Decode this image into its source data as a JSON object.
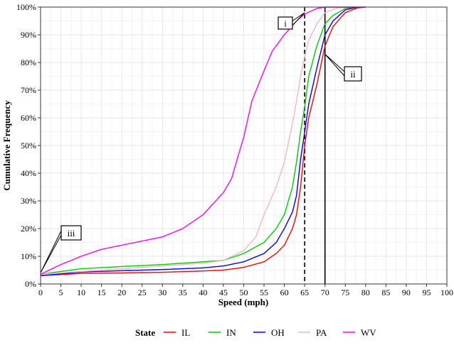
{
  "chart_data": {
    "type": "line",
    "xlabel": "Speed (mph)",
    "ylabel": "Cumulative Frequency",
    "xlim": [
      0,
      100
    ],
    "ylim": [
      0,
      100
    ],
    "x_ticks": [
      0,
      5,
      10,
      15,
      20,
      25,
      30,
      35,
      40,
      45,
      50,
      55,
      60,
      65,
      70,
      75,
      80,
      85,
      90,
      95,
      100
    ],
    "y_ticks": [
      0,
      10,
      20,
      30,
      40,
      50,
      60,
      70,
      80,
      90,
      100
    ],
    "y_tick_labels": [
      "0%",
      "10%",
      "20%",
      "30%",
      "40%",
      "50%",
      "60%",
      "70%",
      "80%",
      "90%",
      "100%"
    ],
    "grid": true,
    "legend": {
      "title": "State",
      "placement": "bottom"
    },
    "reference_lines": [
      {
        "x": 65,
        "style": "dashed"
      },
      {
        "x": 70,
        "style": "solid"
      }
    ],
    "annotations": [
      {
        "label": "i",
        "points_to": [
          65,
          98
        ]
      },
      {
        "label": "ii",
        "points_to": [
          70,
          83
        ]
      },
      {
        "label": "iii",
        "points_to": [
          0,
          4
        ]
      }
    ],
    "series": [
      {
        "name": "IL",
        "color": "#ff0000",
        "points": [
          [
            0,
            3
          ],
          [
            10,
            3.8
          ],
          [
            20,
            4
          ],
          [
            30,
            4.2
          ],
          [
            40,
            4.7
          ],
          [
            45,
            5
          ],
          [
            50,
            6
          ],
          [
            55,
            8
          ],
          [
            58,
            11
          ],
          [
            60,
            14
          ],
          [
            62,
            20
          ],
          [
            63,
            25
          ],
          [
            64,
            35
          ],
          [
            65,
            50
          ],
          [
            66,
            60
          ],
          [
            68,
            72
          ],
          [
            70,
            86
          ],
          [
            72,
            93
          ],
          [
            75,
            98
          ],
          [
            78,
            99.7
          ],
          [
            80,
            100
          ]
        ]
      },
      {
        "name": "IN",
        "color": "#00cc00",
        "points": [
          [
            0,
            3.5
          ],
          [
            10,
            5.5
          ],
          [
            20,
            6.3
          ],
          [
            30,
            7
          ],
          [
            40,
            8
          ],
          [
            45,
            8.5
          ],
          [
            50,
            11
          ],
          [
            55,
            15
          ],
          [
            58,
            20
          ],
          [
            60,
            25
          ],
          [
            62,
            35
          ],
          [
            63,
            44
          ],
          [
            64,
            55
          ],
          [
            65,
            64
          ],
          [
            66,
            75
          ],
          [
            68,
            86
          ],
          [
            70,
            94
          ],
          [
            72,
            97
          ],
          [
            75,
            99.5
          ],
          [
            78,
            100
          ]
        ]
      },
      {
        "name": "OH",
        "color": "#0000ff",
        "points": [
          [
            0,
            3
          ],
          [
            10,
            4.3
          ],
          [
            20,
            4.8
          ],
          [
            30,
            5.2
          ],
          [
            40,
            5.8
          ],
          [
            45,
            6.5
          ],
          [
            50,
            8
          ],
          [
            55,
            11
          ],
          [
            58,
            15
          ],
          [
            60,
            20
          ],
          [
            62,
            26
          ],
          [
            63,
            32
          ],
          [
            64,
            45
          ],
          [
            65,
            55
          ],
          [
            66,
            65
          ],
          [
            68,
            78
          ],
          [
            70,
            90
          ],
          [
            72,
            95
          ],
          [
            75,
            99
          ],
          [
            78,
            100
          ]
        ]
      },
      {
        "name": "PA",
        "color": "#f4b6c2",
        "points": [
          [
            0,
            3.5
          ],
          [
            20,
            5.5
          ],
          [
            40,
            7.5
          ],
          [
            45,
            8.5
          ],
          [
            50,
            12
          ],
          [
            53,
            17
          ],
          [
            55,
            25
          ],
          [
            58,
            35
          ],
          [
            60,
            44
          ],
          [
            62,
            58
          ],
          [
            63,
            66
          ],
          [
            64,
            75
          ],
          [
            65,
            82
          ],
          [
            66,
            88
          ],
          [
            68,
            94
          ],
          [
            70,
            98
          ],
          [
            73,
            99.7
          ],
          [
            76,
            100
          ]
        ]
      },
      {
        "name": "WV",
        "color": "#ff00ff",
        "points": [
          [
            0,
            3.5
          ],
          [
            5,
            7
          ],
          [
            10,
            10
          ],
          [
            15,
            12.5
          ],
          [
            20,
            14
          ],
          [
            25,
            15.5
          ],
          [
            30,
            17
          ],
          [
            35,
            20
          ],
          [
            40,
            25
          ],
          [
            45,
            33
          ],
          [
            47,
            38
          ],
          [
            50,
            53
          ],
          [
            52,
            66
          ],
          [
            55,
            77
          ],
          [
            57,
            84
          ],
          [
            60,
            90
          ],
          [
            63,
            95
          ],
          [
            65,
            97.5
          ],
          [
            68,
            99.5
          ],
          [
            70,
            100
          ],
          [
            80,
            100
          ]
        ]
      }
    ]
  }
}
